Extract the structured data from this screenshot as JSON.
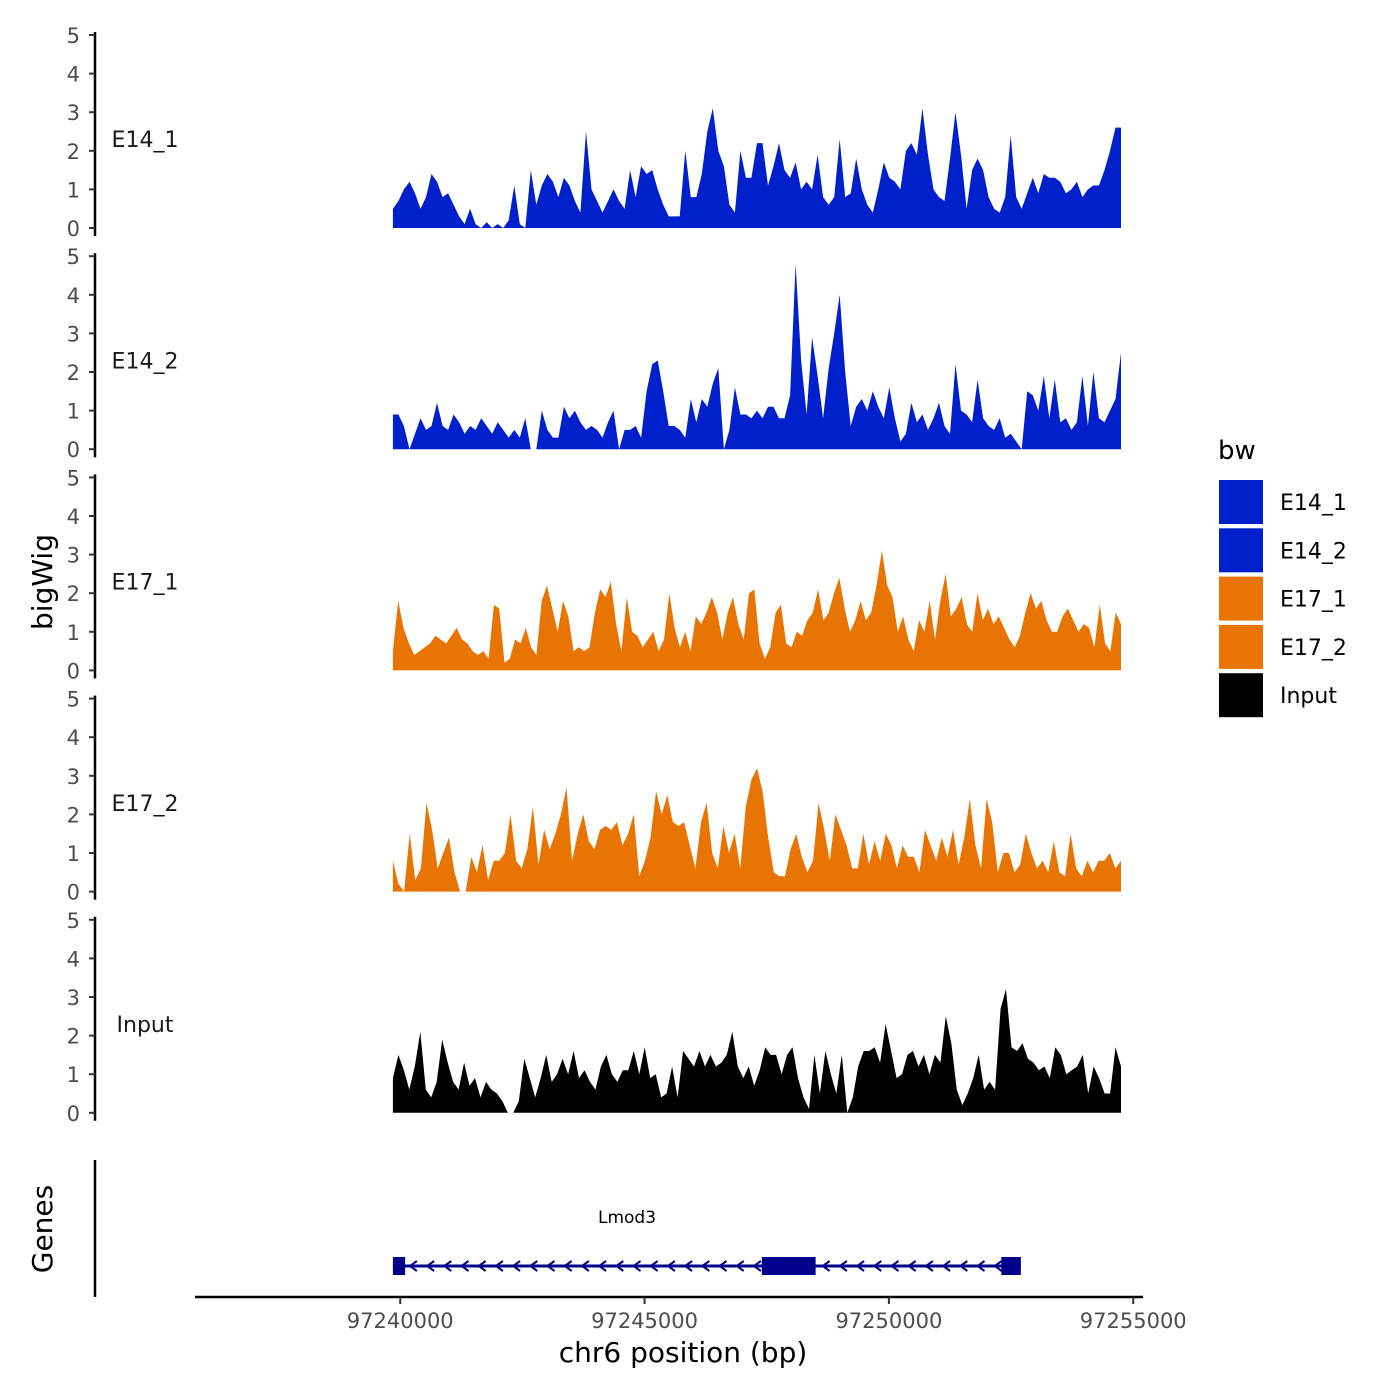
{
  "chart_data": {
    "type": "area",
    "ylabel": "bigWig",
    "xlabel": "chr6 position (bp)",
    "ylim": [
      0,
      5
    ],
    "yticks": [
      0,
      1,
      2,
      3,
      4,
      5
    ],
    "xlim": [
      97235800,
      97255200
    ],
    "xticks": [
      97240000,
      97245000,
      97250000,
      97255000
    ],
    "x_start": 97239850,
    "x_end": 97254750,
    "legend": {
      "title": "bw",
      "position": "right",
      "entries": [
        {
          "name": "E14_1",
          "color": "#0020cc"
        },
        {
          "name": "E14_2",
          "color": "#0020cc"
        },
        {
          "name": "E17_1",
          "color": "#e87503"
        },
        {
          "name": "E17_2",
          "color": "#e87503"
        },
        {
          "name": "Input",
          "color": "#000000"
        }
      ]
    },
    "series": [
      {
        "name": "E14_1",
        "color": "#0020cc",
        "values": [
          0.5,
          0.7,
          1.0,
          1.2,
          0.9,
          0.5,
          0.8,
          1.4,
          1.2,
          0.8,
          0.9,
          0.6,
          0.3,
          0.1,
          0.5,
          0.1,
          0,
          0.15,
          0,
          0.1,
          0,
          0.2,
          1.1,
          0.1,
          0,
          1.5,
          0.6,
          1.1,
          1.4,
          1.2,
          0.8,
          1.3,
          1.1,
          0.7,
          0.4,
          2.5,
          1.0,
          0.7,
          0.4,
          0.7,
          1.0,
          0.7,
          0.5,
          1.5,
          0.8,
          1.6,
          1.4,
          1.5,
          1.0,
          0.6,
          0.3,
          0.3,
          0.3,
          2.0,
          0.8,
          0.8,
          1.4,
          2.5,
          3.1,
          2.0,
          1.6,
          0.6,
          0.4,
          2.0,
          1.3,
          1.3,
          2.2,
          2.2,
          1.1,
          1.6,
          2.2,
          1.5,
          1.3,
          1.7,
          1.0,
          1.2,
          1.0,
          1.9,
          0.8,
          0.6,
          0.8,
          2.3,
          0.8,
          0.9,
          1.8,
          1.0,
          0.6,
          0.4,
          1.0,
          1.7,
          1.3,
          1.2,
          1.0,
          2.0,
          2.2,
          1.9,
          3.1,
          1.9,
          1.0,
          0.8,
          0.7,
          1.8,
          3.0,
          1.9,
          0.5,
          1.5,
          1.8,
          1.5,
          0.8,
          0.5,
          0.4,
          0.8,
          2.4,
          0.8,
          0.5,
          0.9,
          1.3,
          0.9,
          1.4,
          1.3,
          1.3,
          1.2,
          0.9,
          1.0,
          1.2,
          0.8,
          1.0,
          1.1,
          1.1,
          1.5,
          2.0,
          2.6,
          2.6
        ]
      },
      {
        "name": "E14_2",
        "color": "#0020cc",
        "values": [
          0.9,
          0.9,
          0.6,
          0,
          0.4,
          0.8,
          0.5,
          0.6,
          1.2,
          0.6,
          0.5,
          0.9,
          0.7,
          0.4,
          0.6,
          0.5,
          0.8,
          0.6,
          0.4,
          0.7,
          0.5,
          0.3,
          0.5,
          0.3,
          0.8,
          0,
          0,
          1.0,
          0.5,
          0.3,
          0.3,
          1.1,
          0.8,
          1.0,
          0.7,
          0.5,
          0.6,
          0.5,
          0.3,
          0.7,
          1.0,
          0,
          0.5,
          0.5,
          0.6,
          0.3,
          1.5,
          2.2,
          2.3,
          1.5,
          0.6,
          0.6,
          0.5,
          0.3,
          1.3,
          0.7,
          1.3,
          1.1,
          1.7,
          2.1,
          0,
          0.5,
          1.6,
          0.9,
          0.9,
          0.8,
          1.0,
          0.8,
          1.1,
          1.1,
          0.8,
          0.8,
          1.4,
          4.8,
          2.3,
          0.9,
          2.9,
          1.9,
          0.8,
          2.1,
          3.0,
          4.0,
          2.0,
          0.6,
          1.1,
          1.3,
          1.0,
          1.5,
          1.1,
          0.8,
          1.6,
          0.8,
          0.2,
          0.4,
          1.2,
          0.7,
          0.9,
          0.5,
          0.8,
          1.2,
          0.6,
          0.4,
          2.2,
          1.0,
          0.9,
          0.7,
          1.8,
          0.8,
          0.6,
          0.5,
          0.8,
          0.3,
          0.4,
          0.2,
          0,
          1.5,
          1.4,
          1.0,
          1.9,
          0.8,
          1.8,
          0.7,
          0.8,
          0.5,
          0.7,
          1.9,
          0.6,
          2.0,
          0.8,
          0.7,
          1.0,
          1.3,
          2.5
        ]
      },
      {
        "name": "E17_1",
        "color": "#e87503",
        "values": [
          0.5,
          1.8,
          1.1,
          0.7,
          0.4,
          0.5,
          0.6,
          0.7,
          0.9,
          0.8,
          0.7,
          0.9,
          1.1,
          0.8,
          0.7,
          0.5,
          0.4,
          0.5,
          0.3,
          1.7,
          1.6,
          0.2,
          0.3,
          0.8,
          0.7,
          1.1,
          0.6,
          0.4,
          1.8,
          2.2,
          1.6,
          1.0,
          1.8,
          1.4,
          0.5,
          0.6,
          0.5,
          0.6,
          1.5,
          2.1,
          1.9,
          2.3,
          1.2,
          0.5,
          1.9,
          1.0,
          0.9,
          0.6,
          0.8,
          1.0,
          0.5,
          0.8,
          2.0,
          1.1,
          0.6,
          1.0,
          0.5,
          1.4,
          1.2,
          1.5,
          1.9,
          1.5,
          0.8,
          1.5,
          1.9,
          1.2,
          0.8,
          2.0,
          2.1,
          0.7,
          0.3,
          0.6,
          1.5,
          1.7,
          0.7,
          0.6,
          1.0,
          0.9,
          1.3,
          1.5,
          2.1,
          1.3,
          1.5,
          2.0,
          2.4,
          1.6,
          1.0,
          1.3,
          1.8,
          1.3,
          1.5,
          2.2,
          3.1,
          2.2,
          1.9,
          1.0,
          1.4,
          0.8,
          0.5,
          1.3,
          1.0,
          1.8,
          0.8,
          1.8,
          2.5,
          1.4,
          1.6,
          1.9,
          1.2,
          1.0,
          2.0,
          1.3,
          1.6,
          1.2,
          1.4,
          1.1,
          0.8,
          0.6,
          0.9,
          1.5,
          2.0,
          1.6,
          1.8,
          1.3,
          1.0,
          1.0,
          1.4,
          1.6,
          1.3,
          1.0,
          1.2,
          1.1,
          0.6,
          1.7,
          0.7,
          0.5,
          1.5,
          1.2
        ]
      },
      {
        "name": "E17_2",
        "color": "#e87503",
        "values": [
          0.8,
          0.2,
          0,
          1.5,
          0.3,
          0.6,
          2.3,
          1.6,
          0.6,
          1.0,
          1.4,
          0.5,
          0,
          0,
          0.9,
          0.5,
          1.2,
          0.3,
          0.8,
          0.8,
          1.0,
          2.0,
          0.8,
          0.6,
          1.1,
          2.2,
          0.7,
          1.6,
          1.1,
          1.5,
          2.0,
          2.7,
          0.8,
          1.5,
          2.0,
          1.3,
          1.1,
          1.6,
          1.7,
          1.6,
          1.8,
          1.2,
          1.5,
          2.0,
          0.4,
          0.8,
          1.4,
          2.6,
          2.0,
          2.5,
          1.8,
          1.7,
          1.8,
          1.2,
          0.6,
          1.8,
          2.3,
          1.0,
          0.6,
          1.7,
          1.0,
          1.5,
          0.6,
          2.2,
          2.9,
          3.2,
          2.6,
          1.4,
          0.5,
          0.4,
          0.4,
          1.1,
          1.5,
          0.9,
          0.5,
          0.8,
          2.3,
          1.6,
          0.8,
          2.0,
          1.6,
          1.2,
          0.6,
          0.6,
          1.5,
          0.7,
          1.3,
          0.8,
          1.5,
          1.2,
          0.6,
          1.2,
          0.9,
          0.9,
          0.5,
          1.6,
          1.2,
          0.8,
          1.4,
          0.9,
          1.6,
          0.7,
          1.4,
          2.4,
          1.2,
          0.6,
          2.4,
          1.8,
          0.5,
          1.0,
          1.0,
          0.5,
          0.7,
          1.5,
          1.0,
          0.6,
          0.8,
          0.5,
          1.3,
          0.5,
          0.4,
          1.5,
          0.6,
          0.4,
          0.8,
          0.5,
          0.8,
          0.8,
          1.0,
          0.6,
          0.8
        ]
      },
      {
        "name": "Input",
        "color": "#000000",
        "values": [
          0.9,
          1.5,
          1.1,
          0.6,
          1.2,
          2.1,
          0.6,
          0.4,
          0.8,
          1.9,
          1.3,
          0.8,
          0.6,
          1.3,
          0.7,
          0.9,
          0.4,
          0.8,
          0.6,
          0.5,
          0.3,
          0,
          0,
          0.3,
          1.4,
          0.9,
          0.4,
          0.9,
          1.5,
          0.8,
          1.0,
          1.4,
          1.0,
          1.6,
          0.9,
          1.1,
          0.8,
          0.6,
          1.2,
          1.5,
          1.0,
          0.8,
          1.1,
          1.1,
          1.6,
          1.0,
          1.7,
          0.9,
          1.0,
          0.4,
          0.5,
          1.2,
          0.4,
          1.6,
          1.4,
          1.2,
          1.6,
          1.2,
          1.5,
          1.2,
          1.3,
          1.5,
          2.1,
          1.2,
          0.9,
          1.2,
          0.7,
          1.1,
          1.7,
          1.5,
          1.5,
          1.0,
          1.5,
          1.7,
          0.9,
          0.4,
          0.1,
          1.5,
          0.5,
          1.6,
          1.0,
          0.5,
          1.5,
          0,
          0.4,
          1.2,
          1.6,
          1.6,
          1.7,
          1.3,
          2.3,
          1.6,
          0.9,
          1.0,
          1.5,
          1.6,
          1.2,
          1.5,
          1.0,
          1.5,
          1.3,
          2.5,
          1.8,
          0.6,
          0.2,
          0.5,
          0.9,
          1.5,
          0.6,
          0.8,
          0.6,
          2.7,
          3.2,
          1.7,
          1.6,
          1.8,
          1.4,
          1.3,
          1.1,
          1.2,
          0.9,
          1.7,
          1.5,
          1.0,
          1.1,
          1.2,
          1.5,
          0.5,
          1.2,
          0.9,
          0.5,
          0.5,
          1.7,
          1.2
        ]
      }
    ],
    "genes_track": {
      "label": "Genes",
      "gene_name": "Lmod3",
      "strand": "minus",
      "line": [
        97239850,
        97252700
      ],
      "exons": [
        [
          97239850,
          97240100
        ],
        [
          97247400,
          97248500
        ],
        [
          97252300,
          97252700
        ]
      ]
    }
  }
}
